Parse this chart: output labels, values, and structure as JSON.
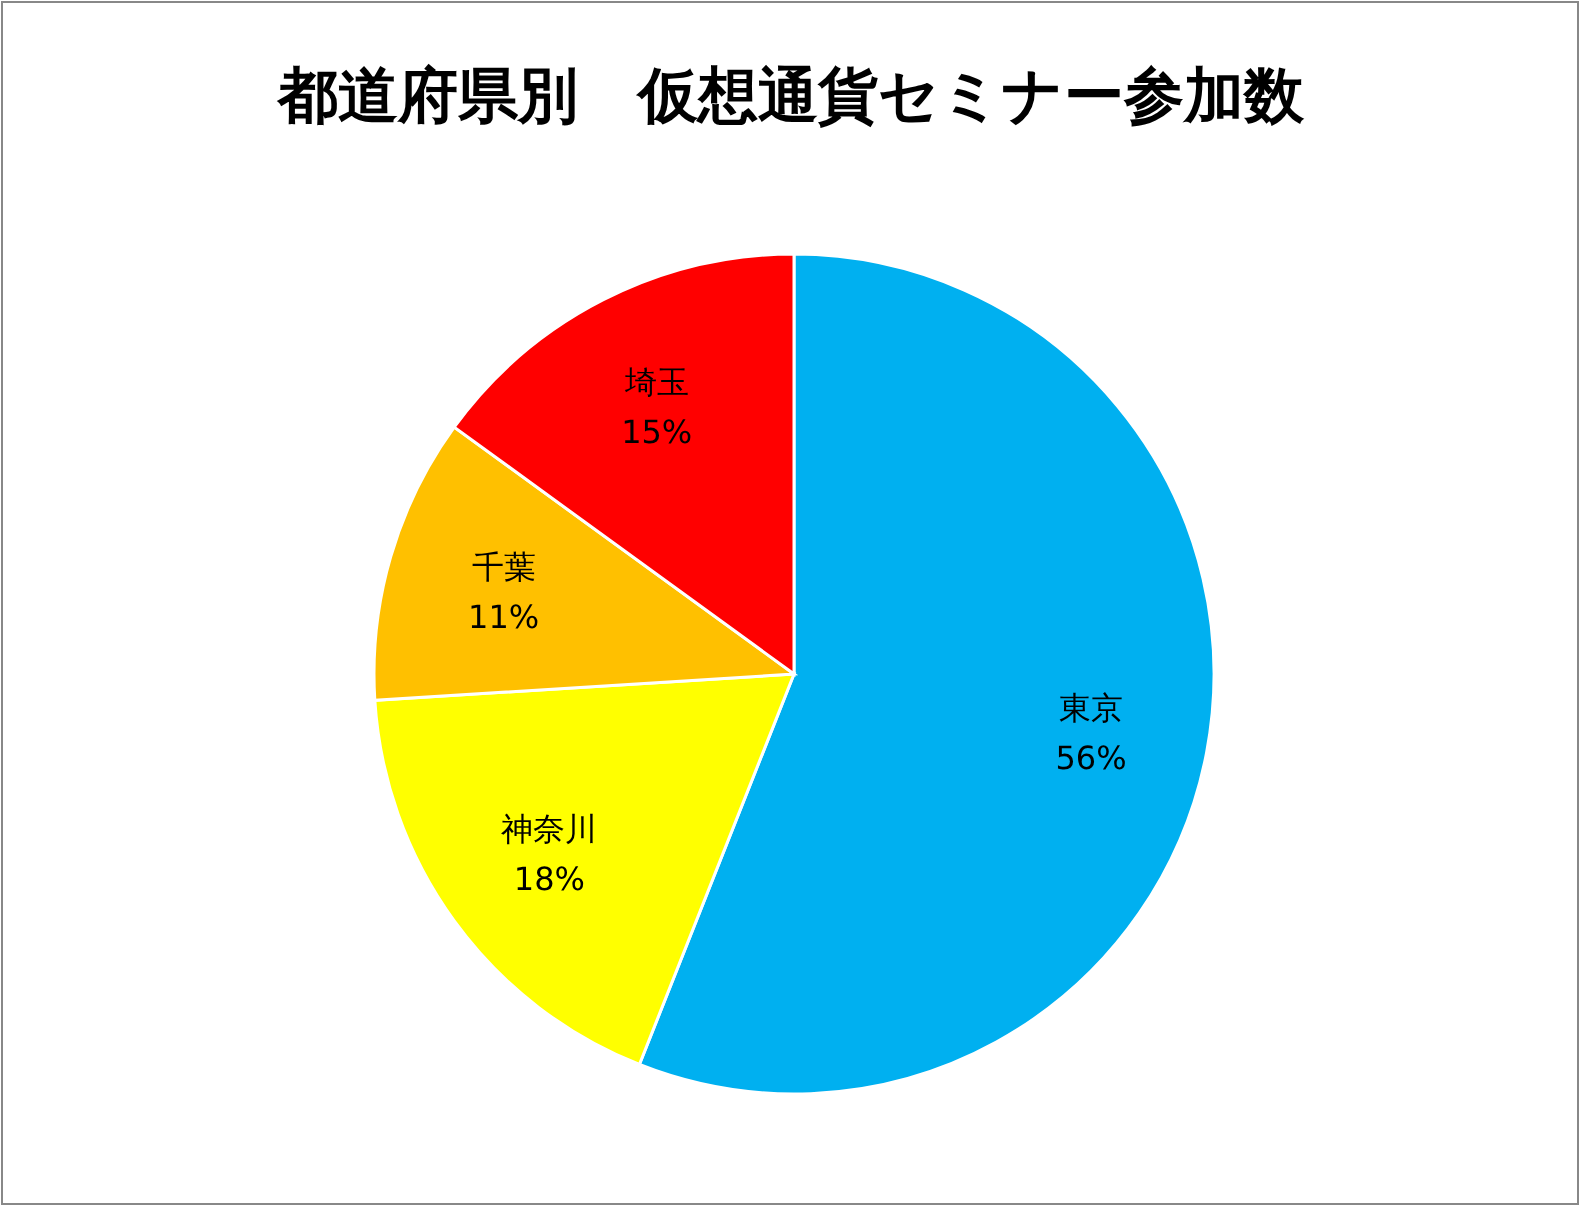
{
  "chart_data": {
    "type": "pie",
    "title": "都道府県別　仮想通貨セミナー参加数",
    "categories": [
      "東京",
      "神奈川",
      "千葉",
      "埼玉"
    ],
    "values": [
      56,
      18,
      11,
      15
    ],
    "value_labels": [
      "56%",
      "18%",
      "11%",
      "15%"
    ],
    "colors": [
      "#00b0f0",
      "#ffff00",
      "#ffc000",
      "#ff0000"
    ]
  }
}
